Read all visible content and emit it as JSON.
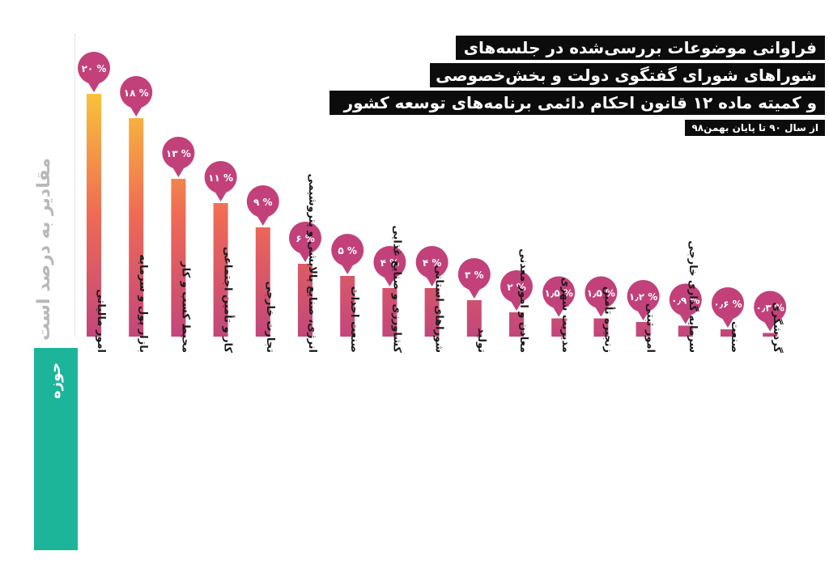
{
  "title_lines": [
    "فراوانی موضوعات بررسی‌شده در جلسه‌های",
    "شوراهای شورای گفتگوی دولت و بخش‌خصوصی",
    "و کمیته ماده ۱۲ قانون احکام دائمی برنامه‌های توسعه کشور"
  ],
  "subtitle": "از سال ۹۰ تا پایان بهمن۹۸",
  "ylabel": "مقادیر به درصد است",
  "xlabel": "حوزه",
  "colors": {
    "bar_top": "#f8c23b",
    "bar_mid": "#ef6a55",
    "bar_bottom": "#c2467c",
    "bubble": "#c2417a",
    "label_bg": "#0c0c0c",
    "axis_box": "#1db59a"
  },
  "chart_data": {
    "type": "bar",
    "ylabel": "مقادیر به درصد است",
    "xlabel": "حوزه",
    "ylim": [
      0,
      20
    ],
    "categories": [
      "امور مالیاتی",
      "بازار پول و سرمایه",
      "محیط کسب و کار",
      "کار و تأمین اجتماعی",
      "تجارت خارجی",
      "انرژی، صنایع پالایشی و پتروشیمی",
      "صنعت احداث",
      "کشاورزی و صنایع غذایی",
      "شوراهای استانی",
      "تولید",
      "معادن و امور معدنی",
      "مدیریت شهری",
      "زنجیره تأمین",
      "امور ثبتی",
      "سرمایه گذاری خارجی",
      "صنعت",
      "گردشگری"
    ],
    "values": [
      20,
      18,
      13,
      11,
      9,
      6,
      5,
      4,
      4,
      3,
      2,
      1.5,
      1.5,
      1.2,
      0.9,
      0.6,
      0.3
    ],
    "data_labels": [
      "۲۰ %",
      "۱۸ %",
      "۱۳ %",
      "۱۱ %",
      "۹ %",
      "۶ %",
      "۵ %",
      "۴ %",
      "۴ %",
      "۳ %",
      "۲ %",
      "۱٫۵ %",
      "۱٫۵ %",
      "۱٫۲ %",
      "۰٫۹ %",
      "۰٫۶ %",
      "۰٫۳ %"
    ]
  }
}
